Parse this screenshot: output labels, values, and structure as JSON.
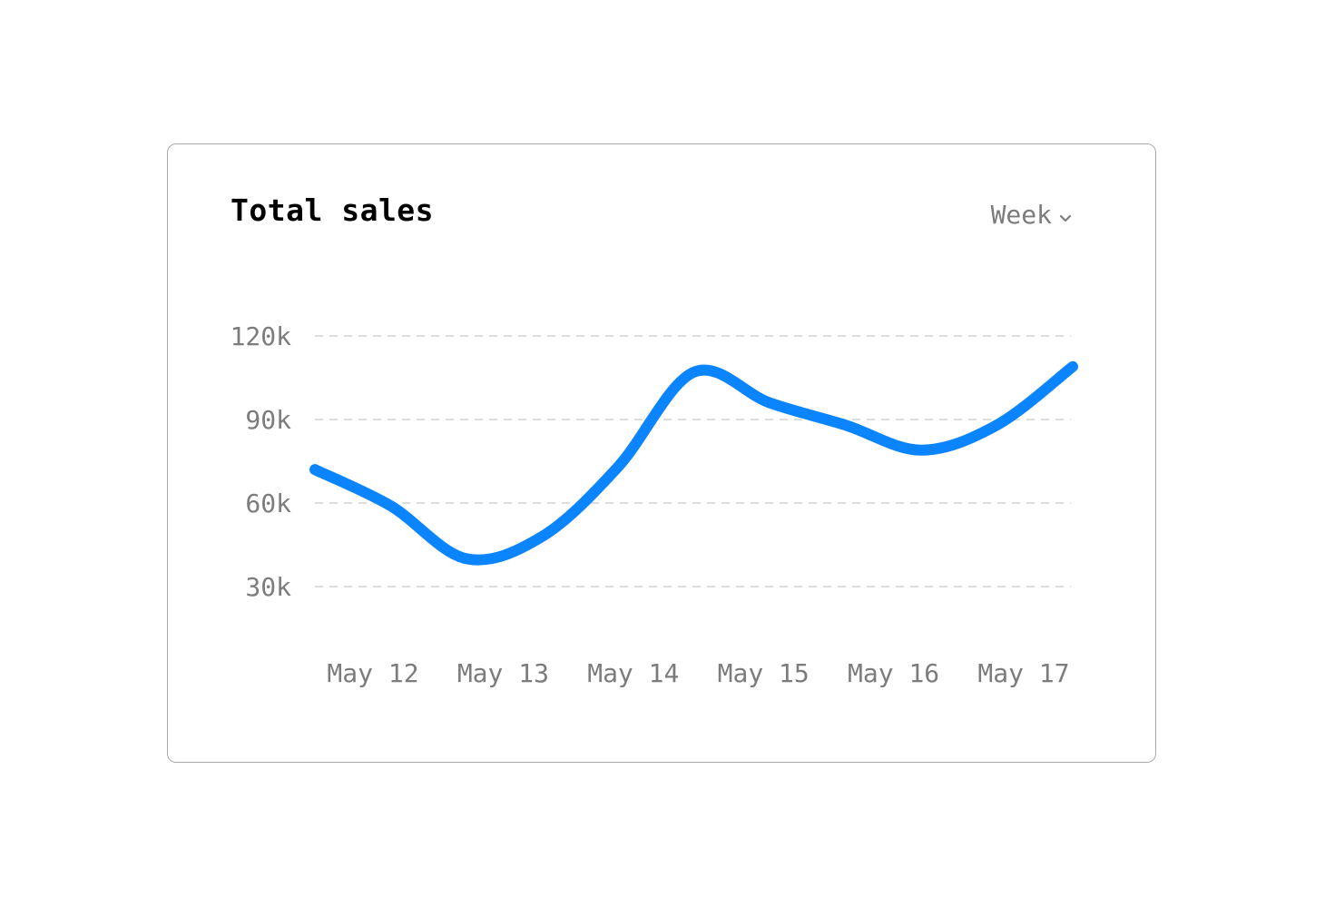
{
  "card": {
    "title": "Total sales",
    "period_selector": {
      "label": "Week",
      "icon": "chevron-down-icon"
    }
  },
  "colors": {
    "line": "#0a84ff",
    "grid": "#dddddd",
    "tick_text": "#7c7c7c",
    "title": "#000000"
  },
  "chart_data": {
    "type": "line",
    "title": "Total sales",
    "xlabel": "",
    "ylabel": "",
    "categories": [
      "May 12",
      "May 13",
      "May 14",
      "May 15",
      "May 16",
      "May 17"
    ],
    "y_ticks": [
      30000,
      60000,
      90000,
      120000
    ],
    "y_tick_labels": [
      "30k",
      "60k",
      "90k",
      "120k"
    ],
    "ylim": [
      30000,
      120000
    ],
    "grid": true,
    "legend": "none",
    "series": [
      {
        "x": [
          "May 12",
          "May 12 (mid)",
          "May 13",
          "May 13 (mid)",
          "May 14",
          "May 14 (mid)",
          "May 15",
          "May 15 (mid)",
          "May 16",
          "May 16 (mid)",
          "May 17"
        ],
        "values": [
          72000,
          59000,
          40000,
          48000,
          73000,
          107000,
          96000,
          88000,
          79000,
          88000,
          109000
        ]
      }
    ]
  }
}
